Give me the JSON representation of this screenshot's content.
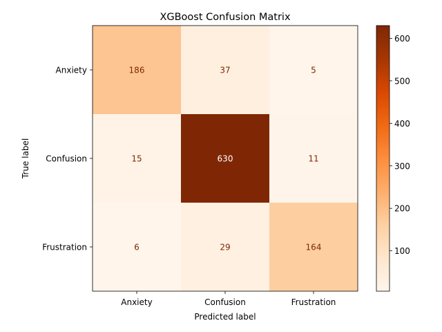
{
  "chart_data": {
    "type": "heatmap",
    "title": "XGBoost Confusion Matrix",
    "xlabel": "Predicted label",
    "ylabel": "True label",
    "x_categories": [
      "Anxiety",
      "Confusion",
      "Frustration"
    ],
    "y_categories": [
      "Anxiety",
      "Confusion",
      "Frustration"
    ],
    "values": [
      [
        186,
        37,
        5
      ],
      [
        15,
        630,
        11
      ],
      [
        6,
        29,
        164
      ]
    ],
    "colormap": "Oranges",
    "colorbar": {
      "range": [
        5,
        630
      ],
      "ticks": [
        100,
        200,
        300,
        400,
        500,
        600
      ]
    },
    "grid": false
  }
}
